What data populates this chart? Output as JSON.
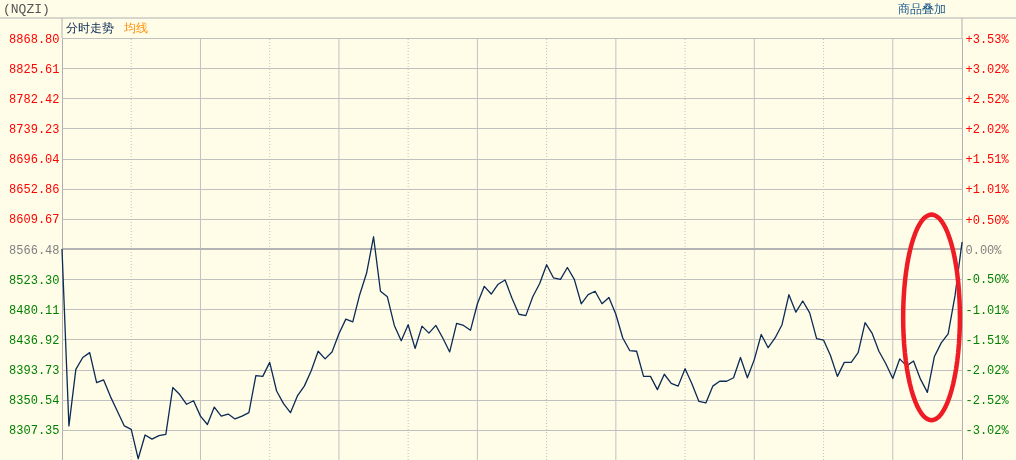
{
  "chart_data": {
    "type": "line",
    "title": "(NQZI)",
    "categories": [
      null,
      null,
      null,
      null,
      null,
      null,
      null,
      null,
      null,
      null,
      null,
      null,
      null,
      null,
      null,
      null,
      null,
      null,
      null,
      null,
      null,
      null,
      null,
      null,
      null,
      null,
      null,
      null,
      null,
      null,
      null,
      null,
      null,
      null,
      null,
      null,
      null,
      null,
      null,
      null,
      null,
      null,
      null,
      null,
      null,
      null,
      null,
      null,
      null,
      null,
      null,
      null,
      null,
      null,
      null,
      null,
      null,
      null,
      null,
      null,
      null,
      null,
      null,
      null,
      null,
      null,
      null,
      null,
      null,
      null,
      null,
      null,
      null,
      null,
      null,
      null,
      null,
      null,
      null,
      null,
      null,
      null,
      null,
      null,
      null,
      null,
      null,
      null,
      null,
      null,
      null,
      null,
      null,
      null,
      null,
      null,
      null,
      null,
      null,
      null,
      null,
      null,
      null,
      null,
      null,
      null,
      null,
      null,
      null,
      null,
      null,
      null,
      null,
      null,
      null,
      null,
      null,
      null,
      null,
      null,
      null,
      null,
      null,
      null,
      null,
      null,
      null,
      null,
      null,
      null,
      null
    ],
    "series": [
      {
        "name": "分时走势",
        "color": "#0b2a55",
        "values": [
          8566,
          8313,
          8394,
          8411,
          8418,
          8375,
          8379,
          8355,
          8334,
          8313,
          8308,
          8266,
          8300,
          8294,
          8299,
          8301,
          8368,
          8358,
          8344,
          8349,
          8327,
          8315,
          8340,
          8327,
          8330,
          8323,
          8327,
          8332,
          8385,
          8384,
          8404,
          8363,
          8345,
          8332,
          8356,
          8370,
          8392,
          8420,
          8409,
          8419,
          8445,
          8466,
          8462,
          8501,
          8532,
          8584,
          8506,
          8498,
          8457,
          8435,
          8458,
          8424,
          8456,
          8446,
          8457,
          8439,
          8419,
          8460,
          8457,
          8450,
          8488,
          8513,
          8502,
          8516,
          8522,
          8496,
          8473,
          8471,
          8498,
          8517,
          8544,
          8525,
          8523,
          8540,
          8523,
          8488,
          8501,
          8506,
          8488,
          8497,
          8473,
          8439,
          8421,
          8420,
          8384,
          8384,
          8365,
          8387,
          8374,
          8370,
          8395,
          8373,
          8348,
          8346,
          8370,
          8377,
          8377,
          8382,
          8411,
          8382,
          8408,
          8444,
          8425,
          8439,
          8458,
          8501,
          8476,
          8492,
          8475,
          8438,
          8436,
          8414,
          8384,
          8404,
          8404,
          8418,
          8461,
          8446,
          8420,
          8402,
          8381,
          8409,
          8399,
          8406,
          8380,
          8361,
          8412,
          8432,
          8445,
          8500,
          8576
        ]
      }
    ],
    "ylim": [
      8264.16,
      8868.8
    ],
    "yticks": [
      {
        "value": 8868.8,
        "label": "8868.80"
      },
      {
        "value": 8825.61,
        "label": "8825.61"
      },
      {
        "value": 8782.42,
        "label": "8782.42"
      },
      {
        "value": 8739.23,
        "label": "8739.23"
      },
      {
        "value": 8696.04,
        "label": "8696.04"
      },
      {
        "value": 8652.86,
        "label": "8652.86"
      },
      {
        "value": 8609.67,
        "label": "8609.67"
      },
      {
        "value": 8566.48,
        "label": "8566.48"
      },
      {
        "value": 8523.3,
        "label": "8523.30"
      },
      {
        "value": 8480.11,
        "label": "8480.11"
      },
      {
        "value": 8436.92,
        "label": "8436.92"
      },
      {
        "value": 8393.73,
        "label": "8393.73"
      },
      {
        "value": 8350.54,
        "label": "8350.54"
      },
      {
        "value": 8307.35,
        "label": "8307.35"
      }
    ],
    "y2lim": [
      -3.53,
      3.53
    ],
    "y2ticks": [
      {
        "value": 3.53,
        "label": "+3.53%"
      },
      {
        "value": 3.02,
        "label": "+3.02%"
      },
      {
        "value": 2.52,
        "label": "+2.52%"
      },
      {
        "value": 2.02,
        "label": "+2.02%"
      },
      {
        "value": 1.51,
        "label": "+1.51%"
      },
      {
        "value": 1.01,
        "label": "+1.01%"
      },
      {
        "value": 0.5,
        "label": "+0.50%"
      },
      {
        "value": 0.0,
        "label": "0.00%"
      },
      {
        "value": -0.5,
        "label": "-0.50%"
      },
      {
        "value": -1.01,
        "label": "-1.01%"
      },
      {
        "value": -1.51,
        "label": "-1.51%"
      },
      {
        "value": -2.02,
        "label": "-2.02%"
      },
      {
        "value": -2.52,
        "label": "-2.52%"
      },
      {
        "value": -3.02,
        "label": "-3.02%"
      }
    ],
    "ref_lines": [
      {
        "axis": "y",
        "value": 8566.48,
        "color": "#b4b4b4"
      }
    ],
    "grid": true,
    "legend": "top left",
    "annotations": [
      "均线",
      "商品叠加"
    ]
  }
}
